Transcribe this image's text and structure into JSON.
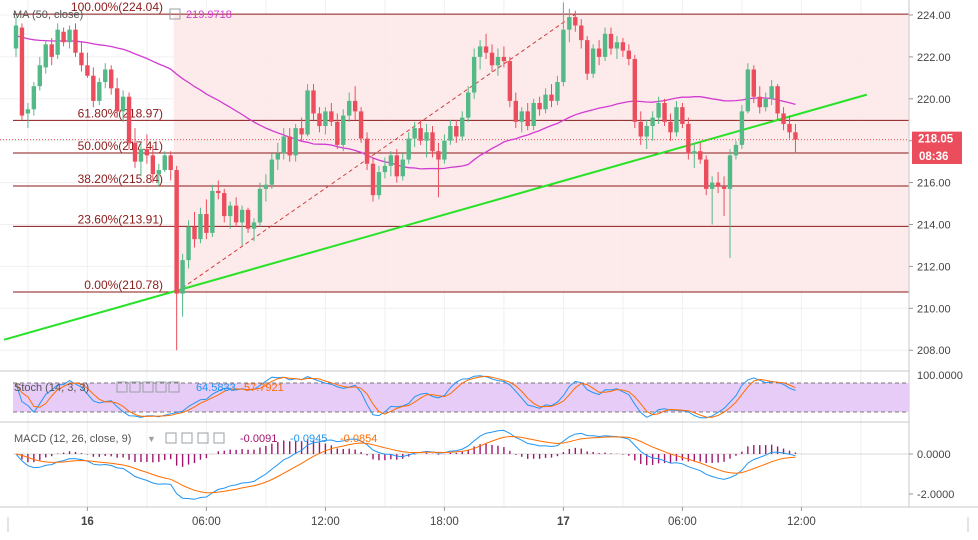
{
  "colors": {
    "up": "#53b987",
    "down": "#eb4d5c",
    "ma": "#d23cd2",
    "trend": "#27e227",
    "fib_line": "#8b1a1a",
    "fib_fill": "#fde8e8",
    "stoch_k": "#2196f3",
    "stoch_d": "#ff6d00",
    "stoch_band": "#e6ccf7",
    "macd_line": "#2196f3",
    "signal_line": "#ff6d00",
    "hist": "#a0156d",
    "price_badge": "#eb4d5c"
  },
  "legend": {
    "ma_label": "MA (50, close)",
    "ma_value": "219.9718",
    "stoch_label": "Stoch (14, 3, 3)",
    "stoch_k": "64.5833",
    "stoch_d": "57.7921",
    "macd_label": "MACD (12, 26, close, 9)",
    "macd_hist": "-0.0091",
    "macd_line": "-0.0945",
    "macd_signal": "-0.0854"
  },
  "price_axis": {
    "ticks": [
      "224.00",
      "222.00",
      "220.00",
      "218.00",
      "216.00",
      "214.00",
      "212.00",
      "210.00",
      "208.00"
    ],
    "tick_values": [
      224,
      222,
      220,
      218,
      216,
      214,
      212,
      210,
      208
    ],
    "current_price": "218.05",
    "countdown": "08:36"
  },
  "stoch_axis": {
    "ticks": [
      "100.0000"
    ],
    "tick_values": [
      100
    ]
  },
  "macd_axis": {
    "ticks": [
      "0.0000",
      "-2.0000"
    ],
    "tick_values": [
      0,
      -2
    ]
  },
  "time_axis": {
    "labels": [
      "16",
      "06:00",
      "12:00",
      "18:00",
      "17",
      "06:00",
      "12:00"
    ],
    "bold": [
      true,
      false,
      false,
      false,
      true,
      false,
      false
    ],
    "index": [
      12,
      32,
      52,
      72,
      92,
      112,
      132
    ]
  },
  "chart_data": {
    "type": "candlestick",
    "title": "",
    "ylim": [
      207.3,
      224.6
    ],
    "fibonacci": [
      {
        "label": "100.00%(224.04)",
        "value": 224.04
      },
      {
        "label": "61.80%(218.97)",
        "value": 218.97
      },
      {
        "label": "50.00%(217.41)",
        "value": 217.41
      },
      {
        "label": "38.20%(215.84)",
        "value": 215.84
      },
      {
        "label": "23.60%(213.91)",
        "value": 213.91
      },
      {
        "label": "0.00%(210.78)",
        "value": 210.78
      }
    ],
    "trendline": {
      "from": {
        "i": -2,
        "v": 208.5
      },
      "to": {
        "i": 143,
        "v": 220.2
      }
    },
    "fib_anchor": {
      "from": {
        "i": 27,
        "v": 210.78
      },
      "to": {
        "i": 94,
        "v": 224.04
      }
    },
    "candles": [
      {
        "o": 222.4,
        "h": 223.9,
        "l": 222.0,
        "c": 223.5
      },
      {
        "o": 223.4,
        "h": 223.6,
        "l": 219.0,
        "c": 219.2
      },
      {
        "o": 219.3,
        "h": 219.8,
        "l": 218.6,
        "c": 219.5
      },
      {
        "o": 219.5,
        "h": 220.8,
        "l": 219.2,
        "c": 220.6
      },
      {
        "o": 220.6,
        "h": 222.0,
        "l": 220.4,
        "c": 221.6
      },
      {
        "o": 221.5,
        "h": 222.8,
        "l": 221.2,
        "c": 222.6
      },
      {
        "o": 222.6,
        "h": 222.9,
        "l": 221.6,
        "c": 222.0
      },
      {
        "o": 222.1,
        "h": 223.6,
        "l": 221.9,
        "c": 223.3
      },
      {
        "o": 223.2,
        "h": 223.4,
        "l": 222.5,
        "c": 222.7
      },
      {
        "o": 222.7,
        "h": 223.5,
        "l": 222.4,
        "c": 223.3
      },
      {
        "o": 223.3,
        "h": 223.6,
        "l": 222.0,
        "c": 222.2
      },
      {
        "o": 222.2,
        "h": 222.7,
        "l": 221.3,
        "c": 221.6
      },
      {
        "o": 221.6,
        "h": 222.2,
        "l": 221.0,
        "c": 221.1
      },
      {
        "o": 221.1,
        "h": 221.5,
        "l": 219.6,
        "c": 219.9
      },
      {
        "o": 219.9,
        "h": 221.0,
        "l": 219.7,
        "c": 220.8
      },
      {
        "o": 220.8,
        "h": 221.7,
        "l": 220.5,
        "c": 221.4
      },
      {
        "o": 221.4,
        "h": 221.6,
        "l": 220.2,
        "c": 220.5
      },
      {
        "o": 220.5,
        "h": 221.0,
        "l": 219.1,
        "c": 219.4
      },
      {
        "o": 219.4,
        "h": 220.4,
        "l": 218.9,
        "c": 220.1
      },
      {
        "o": 220.1,
        "h": 220.3,
        "l": 217.6,
        "c": 217.9
      },
      {
        "o": 217.9,
        "h": 218.6,
        "l": 216.7,
        "c": 217.0
      },
      {
        "o": 217.0,
        "h": 217.9,
        "l": 216.3,
        "c": 217.6
      },
      {
        "o": 217.6,
        "h": 218.3,
        "l": 216.9,
        "c": 217.3
      },
      {
        "o": 217.3,
        "h": 217.8,
        "l": 216.0,
        "c": 216.4
      },
      {
        "o": 216.4,
        "h": 216.9,
        "l": 215.8,
        "c": 216.6
      },
      {
        "o": 216.6,
        "h": 217.5,
        "l": 216.5,
        "c": 217.3
      },
      {
        "o": 217.3,
        "h": 217.5,
        "l": 216.1,
        "c": 216.6
      },
      {
        "o": 216.6,
        "h": 216.8,
        "l": 208.0,
        "c": 210.7
      },
      {
        "o": 210.7,
        "h": 212.6,
        "l": 209.6,
        "c": 212.3
      },
      {
        "o": 212.3,
        "h": 214.2,
        "l": 211.9,
        "c": 213.9
      },
      {
        "o": 213.9,
        "h": 214.6,
        "l": 212.9,
        "c": 213.3
      },
      {
        "o": 213.3,
        "h": 214.8,
        "l": 213.1,
        "c": 214.5
      },
      {
        "o": 214.5,
        "h": 215.2,
        "l": 213.3,
        "c": 213.6
      },
      {
        "o": 213.6,
        "h": 215.9,
        "l": 213.4,
        "c": 215.6
      },
      {
        "o": 215.6,
        "h": 216.1,
        "l": 215.2,
        "c": 215.5
      },
      {
        "o": 215.5,
        "h": 215.7,
        "l": 214.1,
        "c": 214.4
      },
      {
        "o": 214.4,
        "h": 215.1,
        "l": 213.8,
        "c": 214.9
      },
      {
        "o": 214.9,
        "h": 215.3,
        "l": 213.9,
        "c": 214.1
      },
      {
        "o": 214.1,
        "h": 214.9,
        "l": 213.0,
        "c": 214.7
      },
      {
        "o": 214.7,
        "h": 214.8,
        "l": 213.6,
        "c": 213.8
      },
      {
        "o": 213.8,
        "h": 214.3,
        "l": 213.2,
        "c": 214.1
      },
      {
        "o": 214.1,
        "h": 216.0,
        "l": 213.9,
        "c": 215.7
      },
      {
        "o": 215.7,
        "h": 216.4,
        "l": 215.1,
        "c": 215.9
      },
      {
        "o": 215.9,
        "h": 217.4,
        "l": 215.7,
        "c": 217.1
      },
      {
        "o": 217.1,
        "h": 217.9,
        "l": 216.6,
        "c": 217.4
      },
      {
        "o": 217.4,
        "h": 218.6,
        "l": 217.1,
        "c": 218.2
      },
      {
        "o": 218.2,
        "h": 218.6,
        "l": 217.0,
        "c": 217.3
      },
      {
        "o": 217.3,
        "h": 218.8,
        "l": 217.0,
        "c": 218.6
      },
      {
        "o": 218.6,
        "h": 219.1,
        "l": 218.0,
        "c": 218.3
      },
      {
        "o": 218.3,
        "h": 220.7,
        "l": 218.2,
        "c": 220.4
      },
      {
        "o": 220.4,
        "h": 220.7,
        "l": 219.0,
        "c": 219.3
      },
      {
        "o": 219.3,
        "h": 219.6,
        "l": 218.4,
        "c": 218.7
      },
      {
        "o": 218.7,
        "h": 219.6,
        "l": 218.3,
        "c": 219.4
      },
      {
        "o": 219.4,
        "h": 219.8,
        "l": 218.7,
        "c": 218.9
      },
      {
        "o": 218.9,
        "h": 219.3,
        "l": 217.6,
        "c": 217.8
      },
      {
        "o": 217.8,
        "h": 219.5,
        "l": 217.5,
        "c": 219.2
      },
      {
        "o": 219.2,
        "h": 220.3,
        "l": 218.9,
        "c": 219.9
      },
      {
        "o": 219.9,
        "h": 220.6,
        "l": 219.0,
        "c": 219.4
      },
      {
        "o": 219.4,
        "h": 219.6,
        "l": 217.9,
        "c": 218.1
      },
      {
        "o": 218.1,
        "h": 218.4,
        "l": 216.6,
        "c": 216.9
      },
      {
        "o": 216.9,
        "h": 217.2,
        "l": 215.1,
        "c": 215.4
      },
      {
        "o": 215.4,
        "h": 216.8,
        "l": 215.2,
        "c": 216.5
      },
      {
        "o": 216.5,
        "h": 217.2,
        "l": 216.2,
        "c": 216.8
      },
      {
        "o": 216.8,
        "h": 217.5,
        "l": 216.3,
        "c": 217.3
      },
      {
        "o": 217.3,
        "h": 217.6,
        "l": 216.0,
        "c": 216.3
      },
      {
        "o": 216.3,
        "h": 217.4,
        "l": 216.1,
        "c": 217.1
      },
      {
        "o": 217.1,
        "h": 218.4,
        "l": 216.9,
        "c": 218.1
      },
      {
        "o": 218.1,
        "h": 218.9,
        "l": 217.7,
        "c": 218.6
      },
      {
        "o": 218.6,
        "h": 219.0,
        "l": 217.8,
        "c": 218.0
      },
      {
        "o": 218.0,
        "h": 218.8,
        "l": 217.2,
        "c": 218.4
      },
      {
        "o": 218.4,
        "h": 218.7,
        "l": 217.2,
        "c": 217.5
      },
      {
        "o": 217.5,
        "h": 217.9,
        "l": 215.3,
        "c": 217.1
      },
      {
        "o": 217.1,
        "h": 218.3,
        "l": 216.9,
        "c": 218.0
      },
      {
        "o": 218.0,
        "h": 219.0,
        "l": 217.8,
        "c": 218.7
      },
      {
        "o": 218.7,
        "h": 219.0,
        "l": 217.9,
        "c": 218.2
      },
      {
        "o": 218.2,
        "h": 219.4,
        "l": 218.0,
        "c": 219.1
      },
      {
        "o": 219.1,
        "h": 220.6,
        "l": 218.9,
        "c": 220.3
      },
      {
        "o": 220.3,
        "h": 222.4,
        "l": 220.0,
        "c": 222.0
      },
      {
        "o": 222.0,
        "h": 222.8,
        "l": 221.4,
        "c": 222.5
      },
      {
        "o": 222.5,
        "h": 223.1,
        "l": 221.9,
        "c": 222.2
      },
      {
        "o": 222.2,
        "h": 222.6,
        "l": 221.3,
        "c": 221.6
      },
      {
        "o": 221.6,
        "h": 222.4,
        "l": 221.1,
        "c": 222.0
      },
      {
        "o": 222.0,
        "h": 222.5,
        "l": 221.5,
        "c": 221.8
      },
      {
        "o": 221.8,
        "h": 222.0,
        "l": 219.6,
        "c": 219.9
      },
      {
        "o": 219.9,
        "h": 220.3,
        "l": 218.6,
        "c": 218.9
      },
      {
        "o": 218.9,
        "h": 219.6,
        "l": 218.4,
        "c": 219.4
      },
      {
        "o": 219.4,
        "h": 219.8,
        "l": 218.5,
        "c": 218.7
      },
      {
        "o": 218.7,
        "h": 220.0,
        "l": 218.5,
        "c": 219.8
      },
      {
        "o": 219.8,
        "h": 220.1,
        "l": 219.2,
        "c": 219.5
      },
      {
        "o": 219.5,
        "h": 220.5,
        "l": 219.3,
        "c": 220.2
      },
      {
        "o": 220.2,
        "h": 220.7,
        "l": 219.6,
        "c": 219.9
      },
      {
        "o": 219.9,
        "h": 221.1,
        "l": 219.7,
        "c": 220.8
      },
      {
        "o": 220.8,
        "h": 224.6,
        "l": 220.6,
        "c": 223.3
      },
      {
        "o": 223.3,
        "h": 224.3,
        "l": 222.7,
        "c": 223.9
      },
      {
        "o": 223.9,
        "h": 224.2,
        "l": 223.2,
        "c": 223.5
      },
      {
        "o": 223.5,
        "h": 223.8,
        "l": 222.4,
        "c": 222.8
      },
      {
        "o": 222.8,
        "h": 223.0,
        "l": 220.9,
        "c": 221.2
      },
      {
        "o": 221.2,
        "h": 222.6,
        "l": 221.0,
        "c": 222.4
      },
      {
        "o": 222.4,
        "h": 222.8,
        "l": 221.6,
        "c": 222.0
      },
      {
        "o": 222.0,
        "h": 223.4,
        "l": 221.8,
        "c": 223.1
      },
      {
        "o": 223.1,
        "h": 223.4,
        "l": 222.1,
        "c": 222.4
      },
      {
        "o": 222.4,
        "h": 223.0,
        "l": 221.9,
        "c": 222.7
      },
      {
        "o": 222.7,
        "h": 222.9,
        "l": 222.0,
        "c": 222.3
      },
      {
        "o": 222.3,
        "h": 222.6,
        "l": 221.6,
        "c": 221.9
      },
      {
        "o": 221.9,
        "h": 222.1,
        "l": 218.6,
        "c": 218.9
      },
      {
        "o": 218.9,
        "h": 219.4,
        "l": 217.8,
        "c": 218.2
      },
      {
        "o": 218.2,
        "h": 219.0,
        "l": 217.6,
        "c": 218.7
      },
      {
        "o": 218.7,
        "h": 219.4,
        "l": 218.0,
        "c": 219.1
      },
      {
        "o": 219.1,
        "h": 220.1,
        "l": 218.8,
        "c": 219.8
      },
      {
        "o": 219.8,
        "h": 220.0,
        "l": 218.7,
        "c": 218.9
      },
      {
        "o": 218.9,
        "h": 219.3,
        "l": 218.0,
        "c": 218.4
      },
      {
        "o": 218.4,
        "h": 219.9,
        "l": 218.2,
        "c": 219.6
      },
      {
        "o": 219.6,
        "h": 219.8,
        "l": 218.6,
        "c": 218.8
      },
      {
        "o": 218.8,
        "h": 219.1,
        "l": 217.1,
        "c": 217.4
      },
      {
        "o": 217.4,
        "h": 217.9,
        "l": 216.7,
        "c": 217.5
      },
      {
        "o": 217.5,
        "h": 217.9,
        "l": 216.9,
        "c": 217.1
      },
      {
        "o": 217.1,
        "h": 217.3,
        "l": 215.4,
        "c": 215.7
      },
      {
        "o": 215.7,
        "h": 216.3,
        "l": 214.0,
        "c": 216.0
      },
      {
        "o": 216.0,
        "h": 216.5,
        "l": 215.5,
        "c": 215.8
      },
      {
        "o": 215.8,
        "h": 216.3,
        "l": 214.4,
        "c": 215.7
      },
      {
        "o": 215.7,
        "h": 217.6,
        "l": 212.4,
        "c": 217.3
      },
      {
        "o": 217.3,
        "h": 218.0,
        "l": 217.1,
        "c": 217.8
      },
      {
        "o": 217.8,
        "h": 219.7,
        "l": 217.6,
        "c": 219.4
      },
      {
        "o": 219.4,
        "h": 221.7,
        "l": 219.3,
        "c": 221.4
      },
      {
        "o": 221.4,
        "h": 221.6,
        "l": 219.8,
        "c": 220.1
      },
      {
        "o": 220.1,
        "h": 220.6,
        "l": 219.3,
        "c": 219.6
      },
      {
        "o": 219.6,
        "h": 220.3,
        "l": 219.4,
        "c": 220.0
      },
      {
        "o": 220.0,
        "h": 220.9,
        "l": 219.7,
        "c": 220.6
      },
      {
        "o": 220.6,
        "h": 220.7,
        "l": 219.0,
        "c": 219.3
      },
      {
        "o": 219.3,
        "h": 219.6,
        "l": 218.5,
        "c": 218.8
      },
      {
        "o": 218.8,
        "h": 219.2,
        "l": 218.1,
        "c": 218.4
      },
      {
        "o": 218.4,
        "h": 218.8,
        "l": 217.4,
        "c": 218.05
      }
    ]
  }
}
